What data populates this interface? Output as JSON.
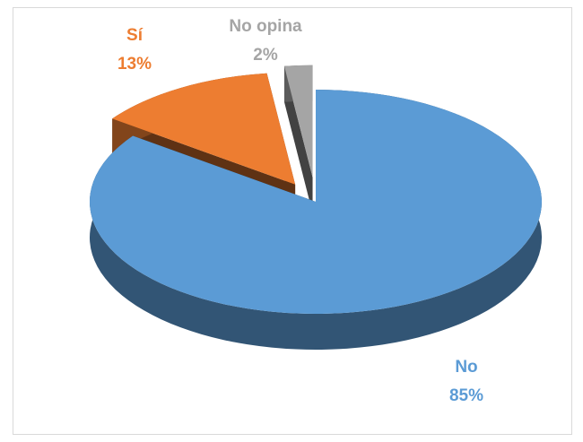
{
  "chart_data": {
    "type": "pie3d",
    "categories": [
      "No",
      "Sí",
      "No opina"
    ],
    "values": [
      85,
      13,
      2
    ],
    "value_labels": [
      "85%",
      "13%",
      "2%"
    ],
    "colors": [
      "#5b9bd5",
      "#ed7d31",
      "#a5a5a5"
    ]
  }
}
